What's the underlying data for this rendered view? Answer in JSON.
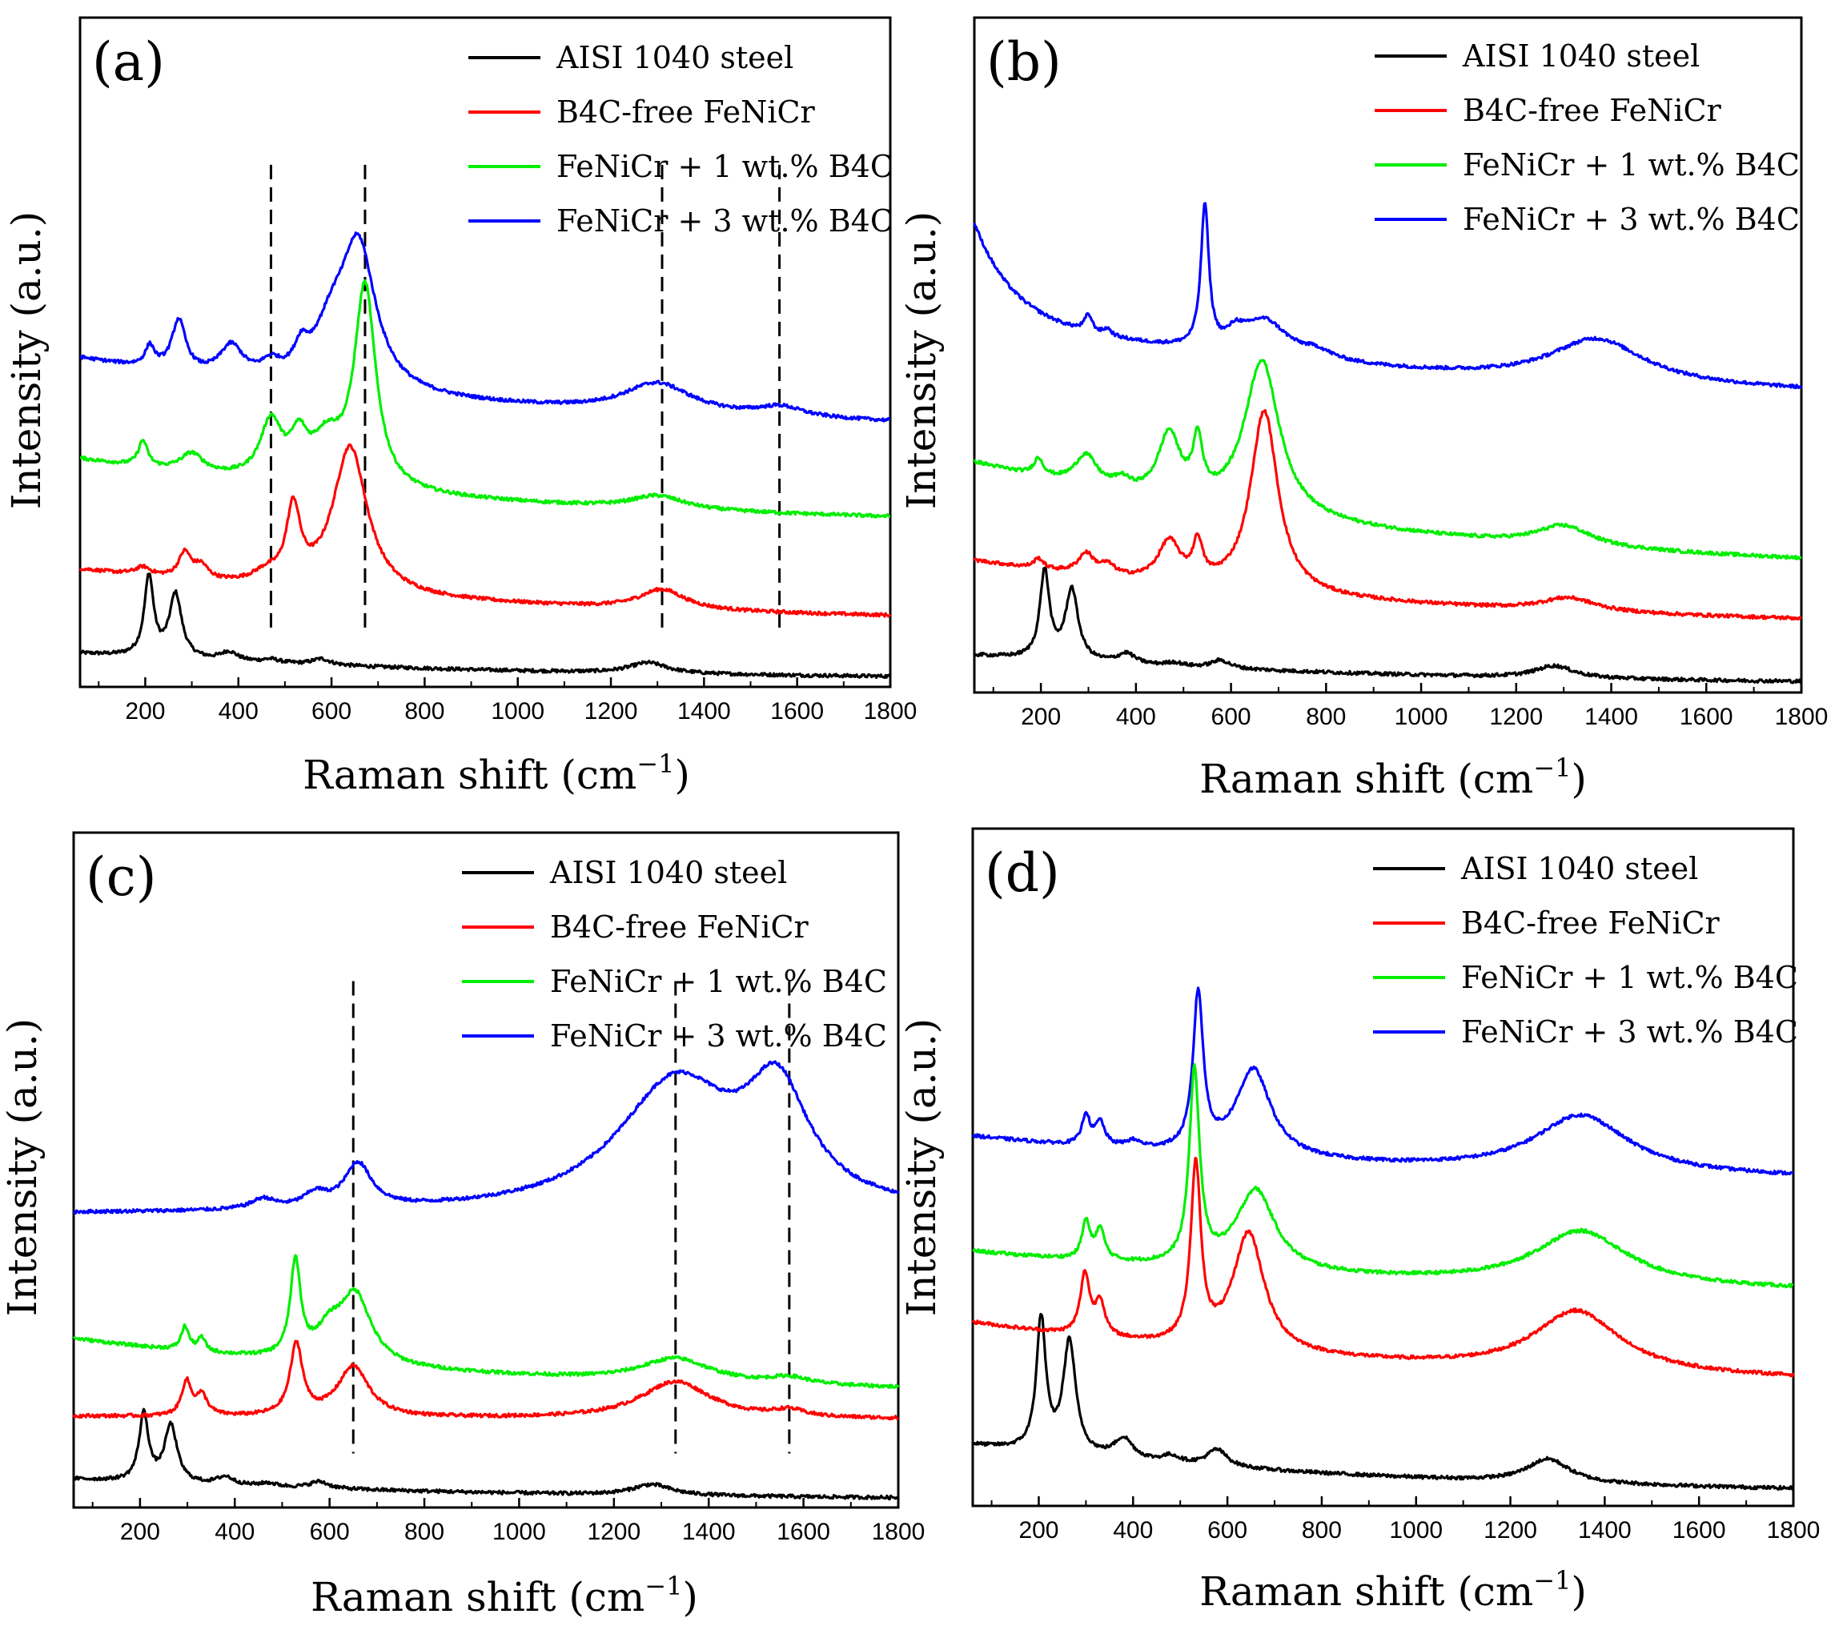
{
  "figure": {
    "xlabel_text": "Raman shift (cm",
    "xlabel_sup": "−1",
    "xlabel_close": ")",
    "ylabel": "Intensity (a.u.)"
  },
  "legend": [
    {
      "name": "AISI 1040 steel",
      "color": "#000000"
    },
    {
      "name": "B4C-free FeNiCr",
      "color": "#ff0000"
    },
    {
      "name": "FeNiCr + 1 wt.% B4C",
      "color": "#00ee00"
    },
    {
      "name": "FeNiCr + 3 wt.% B4C",
      "color": "#0000ff"
    }
  ],
  "colors": {
    "steel": "#000000",
    "free": "#ff0000",
    "one": "#00ee00",
    "three": "#0000ff"
  },
  "chart_data": [
    {
      "type": "line",
      "panel": "(a)",
      "xlabel": "Raman shift (cm−1)",
      "ylabel": "Intensity (a.u.)",
      "xlim": [
        60,
        1800
      ],
      "ylim": [
        0,
        10
      ],
      "xticks": [
        200,
        400,
        600,
        800,
        1000,
        1200,
        1400,
        1600,
        1800
      ],
      "dashed_lines": [
        470,
        672,
        1310,
        1562
      ],
      "series": [
        {
          "name": "AISI 1040 steel",
          "baseline": 0.5,
          "tail": 0.1,
          "decay": 900,
          "rise": 0,
          "rise_width": 1,
          "peaks": [
            [
              208,
              1.2,
              12
            ],
            [
              265,
              0.95,
              16
            ],
            [
              380,
              0.13,
              22
            ],
            [
              470,
              0.05,
              22
            ],
            [
              578,
              0.09,
              24
            ],
            [
              1280,
              0.16,
              50
            ]
          ]
        },
        {
          "name": "B4C-free FeNiCr",
          "baseline": 1.75,
          "tail": 0.95,
          "decay": 900,
          "rise": 0,
          "rise_width": 1,
          "peaks": [
            [
              195,
              0.12,
              20
            ],
            [
              285,
              0.38,
              16
            ],
            [
              320,
              0.2,
              18
            ],
            [
              460,
              0.15,
              35
            ],
            [
              518,
              1.1,
              18
            ],
            [
              640,
              2.2,
              45
            ],
            [
              1310,
              0.3,
              60
            ]
          ]
        },
        {
          "name": "FeNiCr + 1 wt.% B4C",
          "baseline": 3.4,
          "tail": 2.4,
          "decay": 900,
          "rise": 0,
          "rise_width": 1,
          "peaks": [
            [
              195,
              0.38,
              12
            ],
            [
              300,
              0.28,
              30
            ],
            [
              470,
              0.85,
              28
            ],
            [
              530,
              0.55,
              22
            ],
            [
              590,
              0.6,
              40
            ],
            [
              672,
              3.0,
              28
            ],
            [
              1300,
              0.2,
              70
            ]
          ]
        },
        {
          "name": "FeNiCr + 3 wt.% B4C",
          "baseline": 4.9,
          "tail": 3.8,
          "decay": 900,
          "rise": 0,
          "rise_width": 1,
          "peaks": [
            [
              210,
              0.3,
              12
            ],
            [
              272,
              0.75,
              18
            ],
            [
              385,
              0.45,
              30
            ],
            [
              470,
              0.2,
              25
            ],
            [
              535,
              0.35,
              18
            ],
            [
              600,
              0.7,
              45
            ],
            [
              658,
              2.1,
              45
            ],
            [
              1300,
              0.45,
              90
            ],
            [
              1565,
              0.15,
              60
            ]
          ]
        }
      ]
    },
    {
      "type": "line",
      "panel": "(b)",
      "xlabel": "Raman shift (cm−1)",
      "ylabel": "Intensity (a.u.)",
      "xlim": [
        60,
        1800
      ],
      "ylim": [
        0,
        10
      ],
      "xticks": [
        200,
        400,
        600,
        800,
        1000,
        1200,
        1400,
        1600,
        1800
      ],
      "dashed_lines": [],
      "series": [
        {
          "name": "AISI 1040 steel",
          "baseline": 0.55,
          "tail": 0.1,
          "decay": 900,
          "rise": 0,
          "rise_width": 1,
          "peaks": [
            [
              208,
              1.3,
              12
            ],
            [
              265,
              1.05,
              16
            ],
            [
              380,
              0.15,
              22
            ],
            [
              480,
              0.05,
              22
            ],
            [
              578,
              0.12,
              24
            ],
            [
              1280,
              0.18,
              50
            ]
          ]
        },
        {
          "name": "B4C-free FeNiCr",
          "baseline": 1.95,
          "tail": 0.95,
          "decay": 900,
          "rise": 0,
          "rise_width": 1,
          "peaks": [
            [
              195,
              0.15,
              12
            ],
            [
              295,
              0.3,
              20
            ],
            [
              340,
              0.15,
              20
            ],
            [
              470,
              0.6,
              28
            ],
            [
              530,
              0.55,
              12
            ],
            [
              670,
              2.7,
              35
            ],
            [
              1310,
              0.2,
              70
            ]
          ]
        },
        {
          "name": "FeNiCr + 1 wt.% B4C",
          "baseline": 3.4,
          "tail": 1.75,
          "decay": 900,
          "rise": 0,
          "rise_width": 1,
          "peaks": [
            [
              195,
              0.25,
              12
            ],
            [
              295,
              0.45,
              28
            ],
            [
              370,
              0.15,
              20
            ],
            [
              470,
              0.95,
              28
            ],
            [
              530,
              0.8,
              12
            ],
            [
              665,
              2.3,
              45
            ],
            [
              1300,
              0.3,
              70
            ]
          ]
        },
        {
          "name": "FeNiCr + 3 wt.% B4C",
          "baseline": 5.55,
          "tail": 4.3,
          "decay": 900,
          "rise": 1.4,
          "rise_width": 80,
          "peaks": [
            [
              300,
              0.25,
              10
            ],
            [
              340,
              0.1,
              10
            ],
            [
              545,
              2.1,
              10
            ],
            [
              610,
              0.2,
              20
            ],
            [
              670,
              0.55,
              60
            ],
            [
              780,
              0.12,
              40
            ],
            [
              1370,
              0.65,
              120
            ]
          ]
        }
      ]
    },
    {
      "type": "line",
      "panel": "(c)",
      "xlabel": "Raman shift (cm−1)",
      "ylabel": "Intensity (a.u.)",
      "xlim": [
        60,
        1800
      ],
      "ylim": [
        0,
        10
      ],
      "xticks": [
        200,
        400,
        600,
        800,
        1000,
        1200,
        1400,
        1600,
        1800
      ],
      "dashed_lines": [
        650,
        1330,
        1570
      ],
      "series": [
        {
          "name": "AISI 1040 steel",
          "baseline": 0.42,
          "tail": 0.1,
          "decay": 900,
          "rise": 0,
          "rise_width": 1,
          "peaks": [
            [
              208,
              1.0,
              12
            ],
            [
              265,
              0.85,
              16
            ],
            [
              380,
              0.12,
              22
            ],
            [
              470,
              0.05,
              22
            ],
            [
              578,
              0.1,
              24
            ],
            [
              1280,
              0.16,
              50
            ]
          ]
        },
        {
          "name": "B4C-free FeNiCr",
          "baseline": 1.35,
          "tail": 1.3,
          "decay": 900,
          "rise": 0,
          "rise_width": 1,
          "peaks": [
            [
              298,
              0.5,
              12
            ],
            [
              330,
              0.3,
              15
            ],
            [
              530,
              1.05,
              16
            ],
            [
              650,
              0.75,
              40
            ],
            [
              1330,
              0.55,
              90
            ],
            [
              1570,
              0.1,
              40
            ]
          ]
        },
        {
          "name": "FeNiCr + 1 wt.% B4C",
          "baseline": 2.5,
          "tail": 1.65,
          "decay": 900,
          "rise": 0,
          "rise_width": 1,
          "peaks": [
            [
              295,
              0.35,
              10
            ],
            [
              330,
              0.2,
              10
            ],
            [
              528,
              1.4,
              13
            ],
            [
              600,
              0.4,
              35
            ],
            [
              655,
              1.0,
              40
            ],
            [
              1330,
              0.35,
              90
            ],
            [
              1570,
              0.1,
              50
            ]
          ]
        },
        {
          "name": "FeNiCr + 3 wt.% B4C",
          "baseline": 4.35,
          "tail": 4.35,
          "decay": 900,
          "rise": 0,
          "rise_width": 1,
          "peaks": [
            [
              460,
              0.15,
              30
            ],
            [
              570,
              0.2,
              30
            ],
            [
              660,
              0.65,
              35
            ],
            [
              1330,
              1.9,
              150
            ],
            [
              1545,
              1.6,
              80
            ]
          ]
        }
      ]
    },
    {
      "type": "line",
      "panel": "(d)",
      "xlabel": "Raman shift (cm−1)",
      "ylabel": "Intensity (a.u.)",
      "xlim": [
        60,
        1800
      ],
      "ylim": [
        0,
        10
      ],
      "xticks": [
        200,
        400,
        600,
        800,
        1000,
        1200,
        1400,
        1600,
        1800
      ],
      "dashed_lines": [],
      "series": [
        {
          "name": "AISI 1040 steel",
          "baseline": 0.9,
          "tail": 0.15,
          "decay": 900,
          "rise": 0,
          "rise_width": 1,
          "peaks": [
            [
              205,
              1.95,
              12
            ],
            [
              265,
              1.65,
              16
            ],
            [
              380,
              0.3,
              24
            ],
            [
              480,
              0.1,
              22
            ],
            [
              578,
              0.25,
              26
            ],
            [
              1280,
              0.35,
              55
            ]
          ]
        },
        {
          "name": "B4C-free FeNiCr",
          "baseline": 2.7,
          "tail": 1.75,
          "decay": 900,
          "rise": 0,
          "rise_width": 1,
          "peaks": [
            [
              298,
              0.9,
              12
            ],
            [
              330,
              0.5,
              12
            ],
            [
              533,
              2.6,
              13
            ],
            [
              645,
              1.75,
              40
            ],
            [
              1340,
              0.9,
              110
            ]
          ]
        },
        {
          "name": "FeNiCr + 3 wt.% B4C",
          "baseline": 5.45,
          "tail": 4.75,
          "decay": 900,
          "rise": 0,
          "rise_width": 1,
          "peaks": [
            [
              300,
              0.45,
              10
            ],
            [
              330,
              0.35,
              12
            ],
            [
              400,
              0.1,
              20
            ],
            [
              538,
              2.3,
              13
            ],
            [
              655,
              1.3,
              45
            ],
            [
              1350,
              0.85,
              120
            ]
          ]
        },
        {
          "name": "FeNiCr + 1 wt.% B4C",
          "baseline": 3.75,
          "tail": 3.1,
          "decay": 900,
          "rise": 0,
          "rise_width": 1,
          "peaks": [
            [
              300,
              0.55,
              10
            ],
            [
              330,
              0.45,
              12
            ],
            [
              530,
              2.85,
              13
            ],
            [
              660,
              1.2,
              50
            ],
            [
              1350,
              0.8,
              120
            ]
          ]
        }
      ]
    }
  ]
}
